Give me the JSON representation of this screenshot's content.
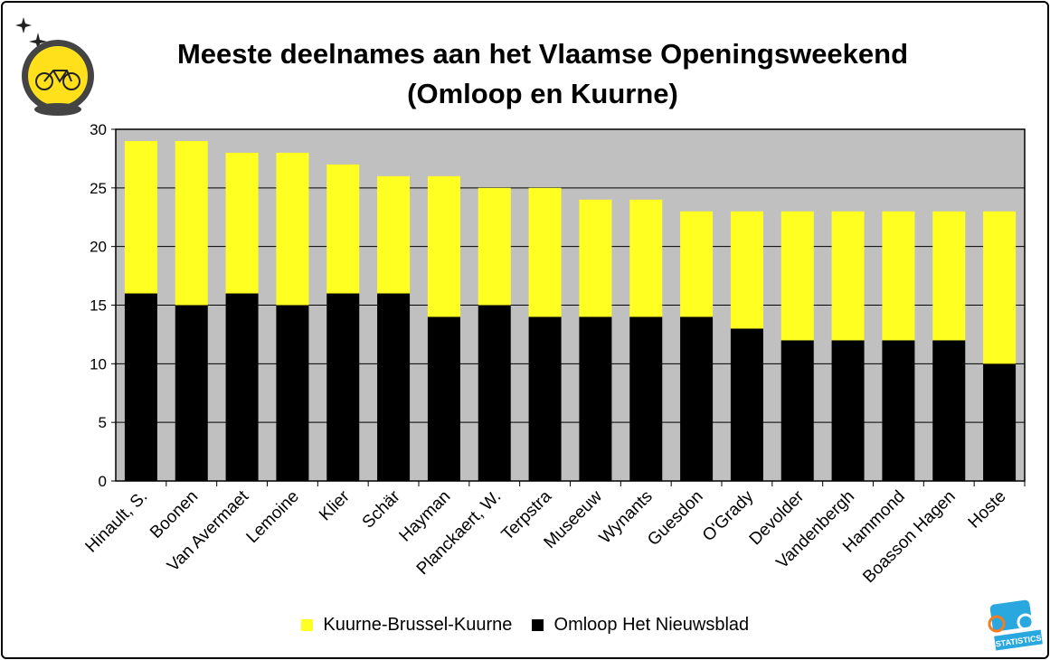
{
  "chart_data": {
    "type": "bar",
    "stacked": true,
    "title": "Meeste deelnames aan het Vlaamse Openingsweekend",
    "subtitle": "(Omloop en Kuurne)",
    "xlabel": "",
    "ylabel": "",
    "ylim": [
      0,
      30
    ],
    "yticks": [
      0,
      5,
      10,
      15,
      20,
      25,
      30
    ],
    "grid": true,
    "legend_placement": "bottom",
    "categories": [
      "Hinault, S.",
      "Boonen",
      "Van Avermaet",
      "Lemoine",
      "Klier",
      "Schär",
      "Hayman",
      "Planckaert, W.",
      "Terpstra",
      "Museeuw",
      "Wynants",
      "Guesdon",
      "O'Grady",
      "Devolder",
      "Vandenbergh",
      "Hammond",
      "Boasson Hagen",
      "Hoste"
    ],
    "series": [
      {
        "name": "Omloop Het Nieuwsblad",
        "color": "#000000",
        "values": [
          16,
          15,
          16,
          15,
          16,
          16,
          14,
          15,
          14,
          14,
          14,
          14,
          13,
          12,
          12,
          12,
          12,
          10
        ]
      },
      {
        "name": "Kuurne-Brussel-Kuurne",
        "color": "#FFFF21",
        "values": [
          13,
          14,
          12,
          13,
          11,
          10,
          12,
          10,
          11,
          10,
          10,
          9,
          10,
          11,
          11,
          11,
          11,
          13
        ]
      }
    ],
    "plot_background": "#C0C0C0"
  }
}
